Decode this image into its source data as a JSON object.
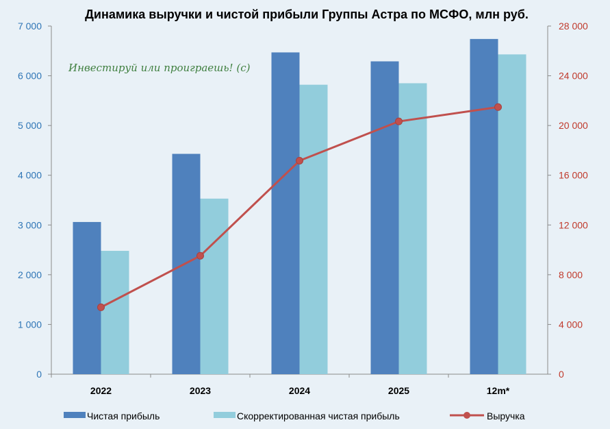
{
  "watermark": "Инвестируй или проиграешь! (с)",
  "colors": {
    "net_profit": "#4f81bd",
    "adj_profit": "#92cddc",
    "revenue": "#c0504d",
    "left_axis": "#2e75b6",
    "right_axis": "#c0392b",
    "background": "#e9f1f7"
  },
  "chart_data": {
    "type": "bar",
    "title": "Динамика выручки и чистой прибыли Группы Астра по МСФО, млн руб.",
    "categories": [
      "2022",
      "2023",
      "2024",
      "2025",
      "12m*"
    ],
    "series": [
      {
        "name": "Чистая прибыль",
        "type": "bar",
        "axis": "left",
        "values": [
          3060,
          4430,
          6470,
          6290,
          6740
        ]
      },
      {
        "name": "Скорректированная чистая прибыль",
        "type": "bar",
        "axis": "left",
        "values": [
          2480,
          3530,
          5820,
          5850,
          6430
        ]
      },
      {
        "name": "Выручка",
        "type": "line",
        "axis": "right",
        "values": [
          5380,
          9520,
          17170,
          20330,
          21480
        ]
      }
    ],
    "ylim_left": [
      0,
      7000
    ],
    "ylim_right": [
      0,
      28000
    ],
    "left_ticks": [
      "0",
      "1 000",
      "2 000",
      "3 000",
      "4 000",
      "5 000",
      "6 000",
      "7 000"
    ],
    "right_ticks": [
      "0",
      "4 000",
      "8 000",
      "12 000",
      "16 000",
      "20 000",
      "24 000",
      "28 000"
    ],
    "grid": false,
    "legend_position": "bottom"
  }
}
